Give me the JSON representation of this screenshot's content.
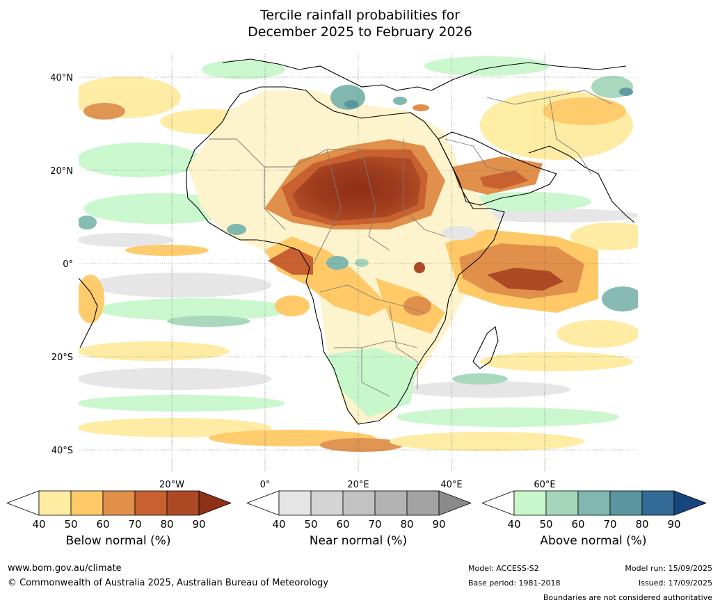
{
  "title": {
    "line1": "Tercile rainfall probabilities for",
    "line2": "December 2025 to February 2026"
  },
  "map": {
    "lat_labels": [
      "40°N",
      "20°N",
      "0°",
      "20°S",
      "40°S"
    ],
    "lon_labels": [
      "20°W",
      "0°",
      "20°E",
      "40°E",
      "60°E"
    ]
  },
  "colorbars": [
    {
      "label": "Below normal (%)",
      "ticks": [
        "40",
        "50",
        "60",
        "70",
        "80",
        "90"
      ],
      "colors": [
        "#ffffff",
        "#feeca0",
        "#fec966",
        "#e0904a",
        "#c9602f",
        "#ad4a25",
        "#8e3016"
      ]
    },
    {
      "label": "Near normal (%)",
      "ticks": [
        "40",
        "50",
        "60",
        "70",
        "80",
        "90"
      ],
      "colors": [
        "#ffffff",
        "#e5e5e5",
        "#d4d4d4",
        "#c3c3c3",
        "#b3b3b3",
        "#a3a3a3",
        "#8a8a8a"
      ]
    },
    {
      "label": "Above normal (%)",
      "ticks": [
        "40",
        "50",
        "60",
        "70",
        "80",
        "90"
      ],
      "colors": [
        "#ffffff",
        "#c8f7cc",
        "#a5d6bb",
        "#80b7ae",
        "#5a95a0",
        "#336a96",
        "#17467e"
      ]
    }
  ],
  "footer": {
    "website": "www.bom.gov.au/climate",
    "copyright": "© Commonwealth of Australia 2025, Australian Bureau of Meteorology",
    "model": "Model: ACCESS-S2",
    "base_period": "Base period: 1981-2018",
    "model_run": "Model run: 15/09/2025",
    "issued": "Issued: 17/09/2025",
    "disclaimer": "Boundaries are not considered authoritative"
  }
}
